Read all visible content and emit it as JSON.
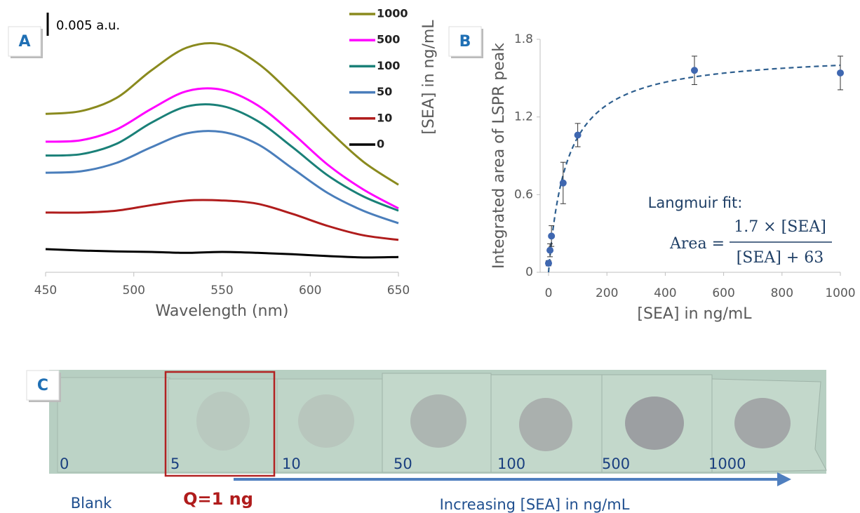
{
  "chart_data": [
    {
      "type": "line",
      "x": [
        450,
        470,
        490,
        510,
        530,
        550,
        570,
        590,
        610,
        630,
        650
      ],
      "xlim": [
        450,
        650
      ],
      "xticks": [
        450,
        500,
        550,
        600,
        650
      ],
      "ylim": [
        0,
        0.05
      ],
      "x_label": "Wavelength (nm)",
      "legend_title": "[SEA] in ng/mL",
      "scale_bar": {
        "value": 0.005,
        "label": "0.005 a.u."
      },
      "series": [
        {
          "name": "1000",
          "color": "#8a8a1e",
          "values": [
            0.0342,
            0.0348,
            0.0376,
            0.0436,
            0.0485,
            0.0492,
            0.0452,
            0.0383,
            0.0308,
            0.0239,
            0.0189
          ]
        },
        {
          "name": "500",
          "color": "#ff00ff",
          "values": [
            0.0282,
            0.0285,
            0.0308,
            0.0353,
            0.0391,
            0.0394,
            0.0361,
            0.03,
            0.0232,
            0.0179,
            0.0138
          ]
        },
        {
          "name": "100",
          "color": "#1a8078",
          "values": [
            0.0252,
            0.0255,
            0.0277,
            0.0323,
            0.0358,
            0.0359,
            0.0327,
            0.027,
            0.0209,
            0.0164,
            0.0133
          ]
        },
        {
          "name": "50",
          "color": "#4a7ebb",
          "values": [
            0.0215,
            0.0218,
            0.0236,
            0.027,
            0.03,
            0.0303,
            0.0277,
            0.0224,
            0.0171,
            0.0133,
            0.0106
          ]
        },
        {
          "name": "10",
          "color": "#b01c1c",
          "values": [
            0.0129,
            0.0129,
            0.0133,
            0.0145,
            0.0155,
            0.0155,
            0.0148,
            0.0126,
            0.01,
            0.008,
            0.007
          ]
        },
        {
          "name": "0",
          "color": "#000000",
          "values": [
            0.005,
            0.0047,
            0.0045,
            0.0044,
            0.0042,
            0.0044,
            0.0042,
            0.0039,
            0.0035,
            0.0032,
            0.0033
          ]
        }
      ]
    },
    {
      "type": "scatter",
      "x": [
        0,
        5,
        10,
        50,
        100,
        500,
        1000
      ],
      "values": [
        0.07,
        0.17,
        0.28,
        0.69,
        1.06,
        1.56,
        1.54
      ],
      "errors": [
        0.02,
        0.05,
        0.08,
        0.16,
        0.09,
        0.11,
        0.13
      ],
      "color": "#3f67b0",
      "xlim": [
        0,
        1000
      ],
      "xticks": [
        0,
        200,
        400,
        600,
        800,
        1000
      ],
      "ylim": [
        0,
        1.8
      ],
      "yticks": [
        0,
        0.6,
        1.2,
        1.8
      ],
      "x_label": "[SEA] in ng/mL",
      "y_label": "Integrated area of LSPR peak",
      "fit": {
        "a": 1.7,
        "k": 63,
        "color": "#2e5f8f"
      },
      "fit_label": "Langmuir fit:",
      "fit_lhs": "Area =",
      "fit_numerator": "1.7 × [SEA]",
      "fit_denominator": "[SEA] + 63"
    }
  ],
  "panel_labels": [
    "A",
    "B",
    "C"
  ],
  "photo": {
    "labels": [
      "0",
      "5",
      "10",
      "50",
      "100",
      "500",
      "1000"
    ],
    "blank": "Blank",
    "highlight": "Q=1 ng",
    "arrow_label": "Increasing [SEA] in ng/mL"
  }
}
